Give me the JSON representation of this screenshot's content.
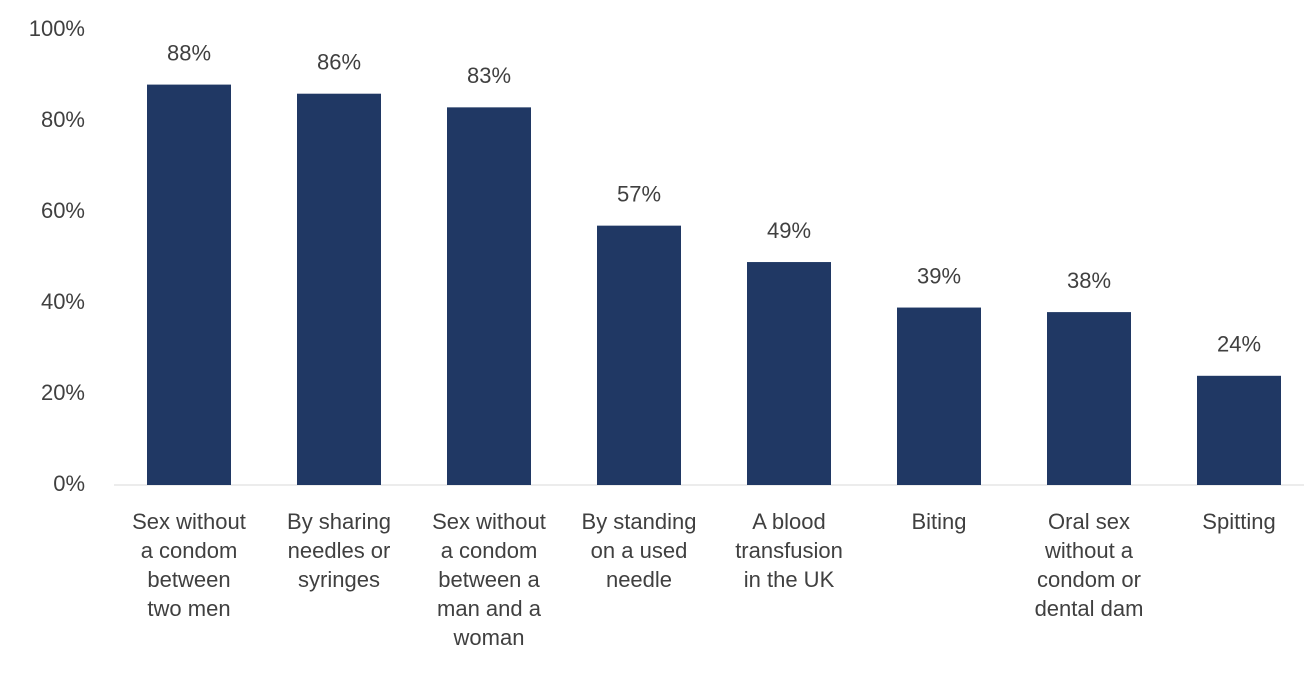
{
  "chart_data": {
    "type": "bar",
    "categories": [
      "Sex without\na condom\nbetween\ntwo men",
      "By sharing\nneedles or\nsyringes",
      "Sex without\na condom\nbetween a\nman and a\nwoman",
      "By standing\non a used\nneedle",
      "A blood\ntransfusion\nin the UK",
      "Biting",
      "Oral sex\nwithout a\ncondom or\ndental dam",
      "Spitting"
    ],
    "values": [
      88,
      86,
      83,
      57,
      49,
      39,
      38,
      24
    ],
    "value_labels": [
      "88%",
      "86%",
      "83%",
      "57%",
      "49%",
      "39%",
      "38%",
      "24%"
    ],
    "color": "#203864",
    "ylim": [
      0,
      100
    ],
    "yticks": [
      {
        "value": 0,
        "label": "0%"
      },
      {
        "value": 20,
        "label": "20%"
      },
      {
        "value": 40,
        "label": "40%"
      },
      {
        "value": 60,
        "label": "60%"
      },
      {
        "value": 80,
        "label": "80%"
      },
      {
        "value": 100,
        "label": "100%"
      }
    ],
    "grid": false
  }
}
